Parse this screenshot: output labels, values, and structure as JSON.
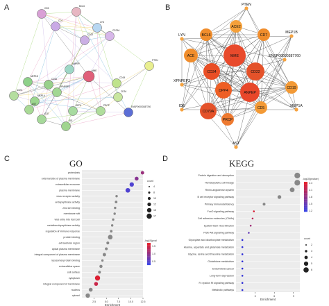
{
  "panels": {
    "a": "A",
    "b": "B",
    "c": "C",
    "d": "D"
  },
  "titles": {
    "go": "GO",
    "kegg": "KEGG"
  },
  "network_a": {
    "nodes": [
      {
        "label": "CD5",
        "color": "#d9a0d6"
      },
      {
        "label": "BCL6",
        "color": "#e7b6c2"
      },
      {
        "label": "CD7",
        "color": "#c9a9e6"
      },
      {
        "label": "LYN",
        "color": "#b7d7f2"
      },
      {
        "label": "CD22",
        "color": "#cbb0e4"
      },
      {
        "label": "CD79A",
        "color": "#d7b7e9"
      },
      {
        "label": "PTEN",
        "color": "#e9ef8f"
      },
      {
        "label": "CD19",
        "color": "#bfe38c"
      },
      {
        "label": "CD34",
        "color": "#c8e6a0"
      },
      {
        "label": "ANPEP",
        "color": "#9ed7c6"
      },
      {
        "label": "MME",
        "color": "#e0607a"
      },
      {
        "label": "DPP4",
        "color": "#a7dba0"
      },
      {
        "label": "MEP1B",
        "color": "#8fd18a"
      },
      {
        "label": "MEP1A",
        "color": "#9cd68f"
      },
      {
        "label": "ACE",
        "color": "#a6d99a"
      },
      {
        "label": "ACE2",
        "color": "#b4de9f"
      },
      {
        "label": "IDE",
        "color": "#a0d58f"
      },
      {
        "label": "AST",
        "color": "#a9da96"
      },
      {
        "label": "PRCP",
        "color": "#b0dd9c"
      },
      {
        "label": "XPNPEP2",
        "color": "#a2d793"
      },
      {
        "label": "CD10",
        "color": "#98d08b"
      },
      {
        "label": "ENSP00000387760",
        "color": "#5c6ed6"
      }
    ]
  },
  "network_b": {
    "nodes": [
      {
        "label": "PTEN"
      },
      {
        "label": "ACE2"
      },
      {
        "label": "MEP1B"
      },
      {
        "label": "BCL6"
      },
      {
        "label": "CD7"
      },
      {
        "label": "LYN"
      },
      {
        "label": "ACE"
      },
      {
        "label": "MME"
      },
      {
        "label": "ENSP00000387760"
      },
      {
        "label": "CD34"
      },
      {
        "label": "CD22"
      },
      {
        "label": "XPNPEP2"
      },
      {
        "label": "CD19"
      },
      {
        "label": "DPP4"
      },
      {
        "label": "ANPEP"
      },
      {
        "label": "IDE"
      },
      {
        "label": "CD79A"
      },
      {
        "label": "CD5"
      },
      {
        "label": "MEP1A"
      },
      {
        "label": "PRCP"
      },
      {
        "label": "AST"
      }
    ]
  },
  "chart_data": [
    {
      "type": "scatter",
      "title": "GO",
      "xlabel": "Enrichment",
      "ylabel": "",
      "xlim": [
        0,
        12.5
      ],
      "xticks": [
        "2.5",
        "5.0",
        "7.5",
        "10.0",
        "12.5"
      ],
      "categories": [
        "proteolysis",
        "external side of plasma membrane",
        "extracellular exosome",
        "plasma membrane",
        "virus receptor activity",
        "endopeptidase activity",
        "zinc ion binding",
        "membrane raft",
        "viral entry into host cell",
        "metalloendopeptidase activity",
        "regulation of immune response",
        "protein binding",
        "extracellular region",
        "apical plasma membrane",
        "integral component of plasma membrane",
        "lysosomal protein binding",
        "extracellular space",
        "cell surface",
        "cytoplasm",
        "integral component of membrane",
        "nucleus",
        "cytosol"
      ],
      "values": [
        12.4,
        11.2,
        10.2,
        9.4,
        7.1,
        7.0,
        6.8,
        6.7,
        6.4,
        6.2,
        6.0,
        5.8,
        5.3,
        5.0,
        4.6,
        4.2,
        3.9,
        3.6,
        3.2,
        2.9,
        1.8,
        1.2
      ],
      "sizes": [
        8,
        10,
        12,
        13,
        4,
        5,
        4,
        4,
        4,
        4,
        5,
        13,
        6,
        6,
        8,
        4,
        7,
        6,
        15,
        10,
        10,
        12
      ],
      "pvalue": [
        1.4,
        1.2,
        0.6,
        0.6,
        0.5,
        0.5,
        0.5,
        0.5,
        0.5,
        0.5,
        0.5,
        0.5,
        0.5,
        0.5,
        0.5,
        0.5,
        0.5,
        0.5,
        2.1,
        1.9,
        0.5,
        0.4
      ],
      "size_legend": {
        "title": "count",
        "values": [
          "4",
          "8",
          "10",
          "12",
          "15",
          "17"
        ]
      },
      "color_legend": {
        "title": "-log10(pval",
        "values": [
          "1.5",
          "1.0",
          "0.5"
        ]
      }
    },
    {
      "type": "scatter",
      "title": "KEGG",
      "xlabel": "Enrichment",
      "ylabel": "",
      "xlim": [
        0,
        10
      ],
      "xticks": [
        "3",
        "6",
        "9"
      ],
      "categories": [
        "Protein digestion and absorption",
        "Hematopoietic cell lineage",
        "Renin-angiotensin system",
        "B cell receptor signaling pathway",
        "Primary immunodeficiency",
        "FoxO signaling pathway",
        "Cell adhesion molecules (CAMs)",
        "Epstein-Barr virus infection",
        "PI3K-Akt signaling pathway",
        "Glyoxylate and dicarboxylate metabolism",
        "Alanine, aspartate and glutamate metabolism",
        "Glycine, serine and threonine metabolism",
        "Glutathione metabolism",
        "Endometrial cancer",
        "Long-term depression",
        "Fc epsilon RI signaling pathway",
        "Metabolic pathways"
      ],
      "values": [
        9.6,
        9.6,
        8.8,
        6.8,
        4.4,
        2.8,
        2.6,
        2.3,
        2.0,
        1.0,
        1.0,
        1.0,
        1.0,
        1.0,
        1.0,
        1.0,
        1.0
      ],
      "sizes": [
        5,
        5,
        4,
        3,
        2,
        1,
        1,
        1,
        1,
        1,
        1,
        1,
        1,
        1,
        1,
        1,
        1
      ],
      "pvalue": [
        1.0,
        1.0,
        1.0,
        1.0,
        1.0,
        2.2,
        2.0,
        1.8,
        1.4,
        1.0,
        1.0,
        1.0,
        1.0,
        1.0,
        1.0,
        1.0,
        1.0
      ],
      "size_legend": {
        "title": "count",
        "values": [
          "2",
          "3",
          "4",
          "5",
          "6"
        ]
      },
      "color_legend": {
        "title": "-log10(pvalue)",
        "values": [
          "2.4",
          "2.1",
          "1.8",
          "1.5",
          "1.2"
        ]
      }
    }
  ]
}
